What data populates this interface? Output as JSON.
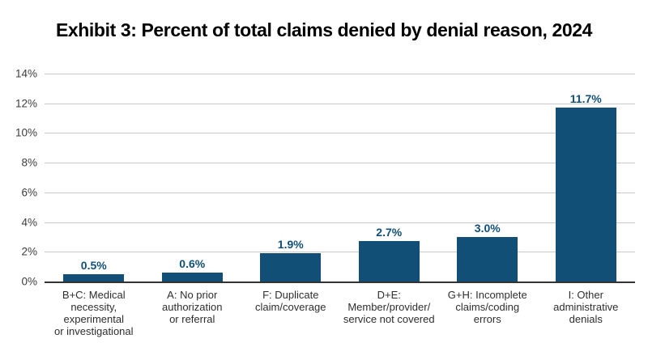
{
  "title": "Exhibit 3: Percent of total claims denied by denial reason, 2024",
  "chart_data": {
    "type": "bar",
    "title": "Exhibit 3: Percent of total claims denied by denial reason, 2024",
    "categories": [
      "B+C: Medical\nnecessity, experimental\nor investigational",
      "A: No prior\nauthorization\nor referral",
      "F: Duplicate\nclaim/coverage",
      "D+E:\nMember/provider/\nservice not covered",
      "G+H: Incomplete\nclaims/coding\nerrors",
      "I: Other\nadministrative\ndenials"
    ],
    "values": [
      0.5,
      0.6,
      1.9,
      2.7,
      3.0,
      11.7
    ],
    "value_labels": [
      "0.5%",
      "0.6%",
      "1.9%",
      "2.7%",
      "3.0%",
      "11.7%"
    ],
    "xlabel": "",
    "ylabel": "",
    "ylim": [
      0,
      14
    ],
    "y_tick_step": 2,
    "y_tick_labels": [
      "0%",
      "2%",
      "4%",
      "6%",
      "8%",
      "10%",
      "12%",
      "14%"
    ],
    "grid": true,
    "legend": false,
    "colors": {
      "bar": "#114F76",
      "value_label": "#114F76",
      "grid_line": "#C9C9C9",
      "axis_line": "#333333",
      "tick_text": "#3C3C3C",
      "category_text": "#2E2E2E",
      "title_text": "#000000",
      "background": "#FFFFFF"
    }
  }
}
